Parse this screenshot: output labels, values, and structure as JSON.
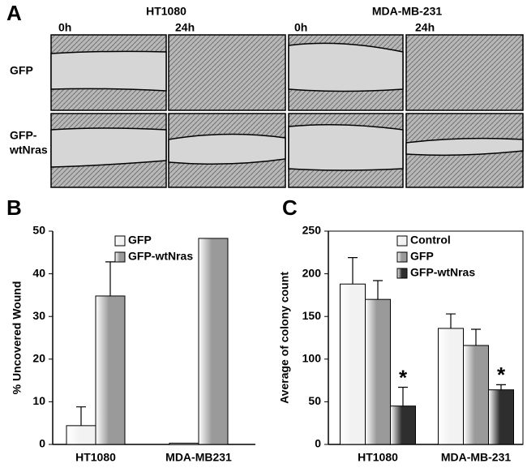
{
  "panel_a": {
    "label": "A",
    "cell_lines": [
      "HT1080",
      "MDA-MB-231"
    ],
    "times": [
      "0h",
      "24h",
      "0h",
      "24h"
    ],
    "rows": [
      "GFP",
      "GFP-",
      "wtNras"
    ]
  },
  "chart_data": [
    {
      "type": "bar",
      "panel_label": "B",
      "y_label": "% Uncovered Wound",
      "categories": [
        "HT1080",
        "MDA-MB231"
      ],
      "series": [
        {
          "name": "GFP",
          "color": "#f2f2f2",
          "values": [
            4.4,
            0.3
          ],
          "errors": [
            4.4,
            null
          ]
        },
        {
          "name": "GFP-wtNras",
          "color": "#9a9a9a",
          "values": [
            34.8,
            48.3
          ],
          "errors": [
            8.0,
            null
          ]
        }
      ],
      "ylim": [
        0,
        50
      ],
      "yticks": [
        0,
        10,
        20,
        30,
        40,
        50
      ],
      "grid": false
    },
    {
      "type": "bar",
      "panel_label": "C",
      "y_label": "Average of colony count",
      "categories": [
        "HT1080",
        "MDA-MB-231"
      ],
      "series": [
        {
          "name": "Control",
          "color": "#f2f2f2",
          "values": [
            188,
            136
          ],
          "errors": [
            31,
            17
          ]
        },
        {
          "name": "GFP",
          "color": "#9a9a9a",
          "values": [
            170,
            116
          ],
          "errors": [
            22,
            19
          ]
        },
        {
          "name": "GFP-wtNras",
          "color": "#2e2e2e",
          "values": [
            45,
            64
          ],
          "errors": [
            22,
            6
          ]
        }
      ],
      "annotations": [
        "*",
        "*"
      ],
      "ylim": [
        0,
        250
      ],
      "yticks": [
        0,
        50,
        100,
        150,
        200,
        250
      ],
      "grid": false
    }
  ]
}
